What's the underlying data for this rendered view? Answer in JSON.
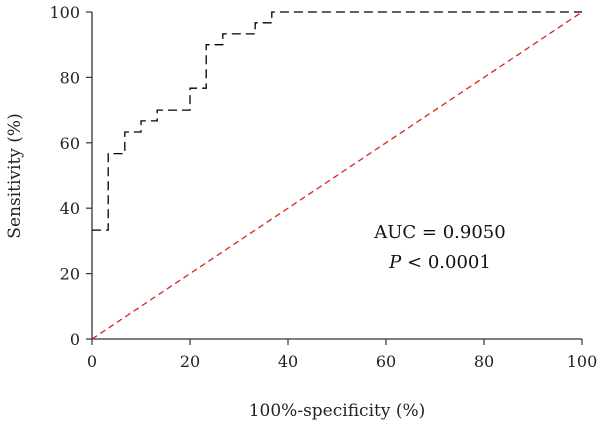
{
  "chart_data": {
    "type": "line",
    "title": "",
    "xlabel": "100%-specificity (%)",
    "ylabel": "Sensitivity (%)",
    "xlim": [
      0,
      100
    ],
    "ylim": [
      0,
      100
    ],
    "x_ticks": [
      "0",
      "20",
      "40",
      "60",
      "80",
      "100"
    ],
    "y_ticks": [
      "0",
      "20",
      "40",
      "60",
      "80",
      "100"
    ],
    "grid": false,
    "legend": "none",
    "annotations": {
      "auc_text": "AUC = 0.9050",
      "p_label": "P",
      "p_rest": " < 0.0001"
    },
    "series": [
      {
        "style": "dashed",
        "color": "#000000",
        "points": [
          [
            0,
            33.3
          ],
          [
            3.3,
            33.3
          ],
          [
            3.3,
            56.7
          ],
          [
            6.7,
            56.7
          ],
          [
            6.7,
            63.3
          ],
          [
            10,
            63.3
          ],
          [
            10,
            66.7
          ],
          [
            13.3,
            66.7
          ],
          [
            13.3,
            70
          ],
          [
            16.7,
            70
          ],
          [
            16.7,
            70
          ],
          [
            20,
            70
          ],
          [
            20,
            73.3
          ],
          [
            20,
            76.7
          ],
          [
            23.3,
            76.7
          ],
          [
            23.3,
            90
          ],
          [
            26.7,
            90
          ],
          [
            26.7,
            93.3
          ],
          [
            33.3,
            93.3
          ],
          [
            33.3,
            96.7
          ],
          [
            36.7,
            96.7
          ],
          [
            36.7,
            100
          ],
          [
            100,
            100
          ]
        ]
      },
      {
        "style": "dashed",
        "color": "#e0201b",
        "points": [
          [
            0,
            0
          ],
          [
            100,
            100
          ]
        ]
      }
    ]
  }
}
